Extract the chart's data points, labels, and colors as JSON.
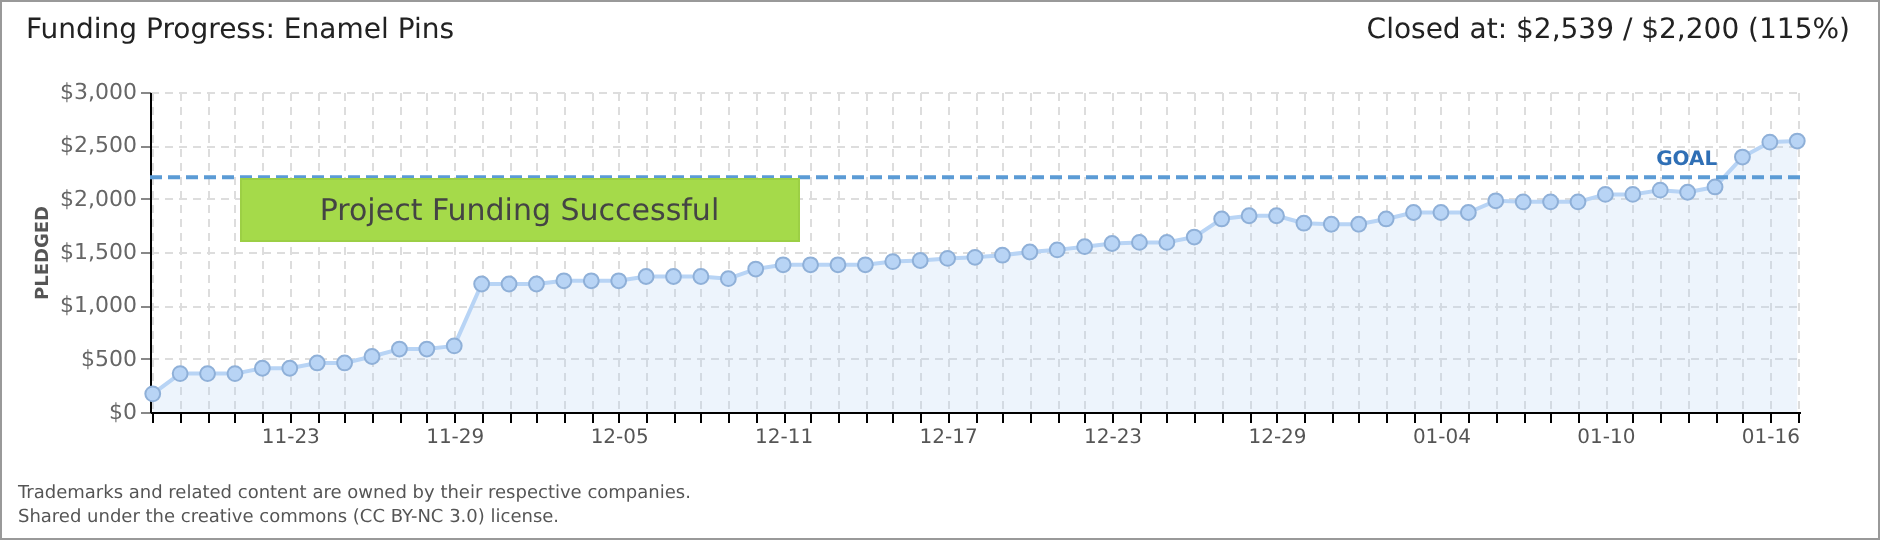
{
  "chart_data": {
    "type": "area",
    "title": "Funding Progress: Enamel Pins",
    "subtitle": "Closed at: $2,539 / $2,200 (115%)",
    "ylabel": "PLEDGED",
    "categories": [
      null,
      null,
      null,
      null,
      null,
      "11-23",
      null,
      null,
      null,
      null,
      null,
      "11-29",
      null,
      null,
      null,
      null,
      null,
      "12-05",
      null,
      null,
      null,
      null,
      null,
      "12-11",
      null,
      null,
      null,
      null,
      null,
      "12-17",
      null,
      null,
      null,
      null,
      null,
      "12-23",
      null,
      null,
      null,
      null,
      null,
      "12-29",
      null,
      null,
      null,
      null,
      null,
      "01-04",
      null,
      null,
      null,
      null,
      null,
      "01-10",
      null,
      null,
      null,
      null,
      null,
      "01-16",
      null
    ],
    "series": [
      {
        "color": "#b8d4f5",
        "values": [
          170,
          360,
          360,
          360,
          410,
          410,
          460,
          460,
          520,
          590,
          590,
          620,
          1200,
          1200,
          1200,
          1230,
          1230,
          1230,
          1270,
          1270,
          1270,
          1250,
          1340,
          1380,
          1380,
          1380,
          1380,
          1410,
          1420,
          1440,
          1450,
          1470,
          1500,
          1520,
          1550,
          1580,
          1590,
          1590,
          1640,
          1810,
          1840,
          1840,
          1770,
          1760,
          1760,
          1810,
          1870,
          1870,
          1870,
          1980,
          1970,
          1970,
          1970,
          2040,
          2040,
          2080,
          2060,
          2110,
          2390,
          2530,
          2540
        ]
      }
    ],
    "ylim": [
      0,
      3000
    ],
    "yticks": [
      {
        "value": 0,
        "label": "$0"
      },
      {
        "value": 500,
        "label": "$500"
      },
      {
        "value": 1000,
        "label": "$1,000"
      },
      {
        "value": 1500,
        "label": "$1,500"
      },
      {
        "value": 2000,
        "label": "$2,000"
      },
      {
        "value": 2500,
        "label": "$2,500"
      },
      {
        "value": 3000,
        "label": "$3,000"
      }
    ],
    "ref_lines": [
      {
        "axis": "y",
        "value": 2200,
        "label": "GOAL",
        "color": "#5b9bd5",
        "line_style": "dashed"
      }
    ],
    "grid": true,
    "marker": "circle",
    "line_style": "solid",
    "annotations": [
      "Project Funding Successful",
      "Trademarks and related content are owned by their respective companies.",
      "Shared under the creative commons (CC BY-NC 3.0) license."
    ]
  }
}
